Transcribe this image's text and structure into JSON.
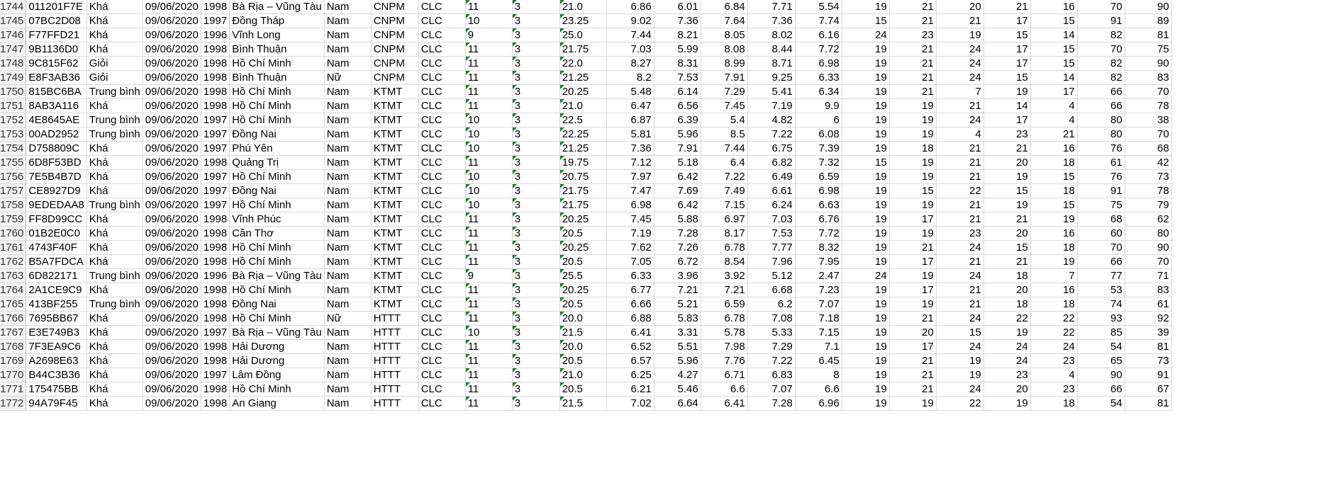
{
  "sheet": {
    "rows": [
      {
        "n": "1744",
        "c": [
          "011201F7​E",
          "Khá",
          "09/06/2020",
          "1998",
          "Bà Rịa – Vũng Tàu",
          "Nam",
          "CNPM",
          "CLC",
          "11",
          "3",
          "21.0",
          "6.86",
          "6.01",
          "6.84",
          "7.71",
          "5.54",
          "19",
          "21",
          "20",
          "21",
          "16",
          "70",
          "90"
        ]
      },
      {
        "n": "1745",
        "c": [
          "07BC2D08",
          "Khá",
          "09/06/2020",
          "1997",
          "Đồng Tháp",
          "Nam",
          "CNPM",
          "CLC",
          "10",
          "3",
          "23.25",
          "9.02",
          "7.36",
          "7.64",
          "7.36",
          "7.74",
          "15",
          "21",
          "21",
          "17",
          "15",
          "91",
          "89"
        ]
      },
      {
        "n": "1746",
        "c": [
          "F77FFD21",
          "Khá",
          "09/06/2020",
          "1996",
          "Vĩnh Long",
          "Nam",
          "CNPM",
          "CLC",
          "9",
          "3",
          "25.0",
          "7.44",
          "8.21",
          "8.05",
          "8.02",
          "6.16",
          "24",
          "23",
          "19",
          "15",
          "14",
          "82",
          "81"
        ]
      },
      {
        "n": "1747",
        "c": [
          "9B1136D0",
          "Khá",
          "09/06/2020",
          "1998",
          "Bình Thuận",
          "Nam",
          "CNPM",
          "CLC",
          "11",
          "3",
          "21.75",
          "7.03",
          "5.99",
          "8.08",
          "8.44",
          "7.72",
          "19",
          "21",
          "24",
          "17",
          "15",
          "70",
          "75"
        ]
      },
      {
        "n": "1748",
        "c": [
          "9C815F62",
          "Giỏi",
          "09/06/2020",
          "1998",
          "Hồ Chí Minh",
          "Nam",
          "CNPM",
          "CLC",
          "11",
          "3",
          "22.0",
          "8.27",
          "8.31",
          "8.99",
          "8.71",
          "6.98",
          "19",
          "21",
          "24",
          "17",
          "15",
          "82",
          "90"
        ]
      },
      {
        "n": "1749",
        "c": [
          "E8F3AB36",
          "Giỏi",
          "09/06/2020",
          "1998",
          "Bình Thuận",
          "Nữ",
          "CNPM",
          "CLC",
          "11",
          "3",
          "21.25",
          "8.2",
          "7.53",
          "7.91",
          "9.25",
          "6.33",
          "19",
          "21",
          "24",
          "15",
          "14",
          "82",
          "83"
        ]
      },
      {
        "n": "1750",
        "c": [
          "815BC6BA",
          "Trung bình",
          "09/06/2020",
          "1998",
          "Hồ Chí Minh",
          "Nam",
          "KTMT",
          "CLC",
          "11",
          "3",
          "20.25",
          "5.48",
          "6.14",
          "7.29",
          "5.41",
          "6.34",
          "19",
          "21",
          "7",
          "19",
          "17",
          "66",
          "70"
        ]
      },
      {
        "n": "1751",
        "c": [
          "8AB3A116",
          "Khá",
          "09/06/2020",
          "1998",
          "Hồ Chí Minh",
          "Nam",
          "KTMT",
          "CLC",
          "11",
          "3",
          "21.0",
          "6.47",
          "6.56",
          "7.45",
          "7.19",
          "9.9",
          "19",
          "19",
          "21",
          "14",
          "4",
          "66",
          "78"
        ]
      },
      {
        "n": "1752",
        "c": [
          "4E8645AE",
          "Trung bình",
          "09/06/2020",
          "1997",
          "Hồ Chí Minh",
          "Nam",
          "KTMT",
          "CLC",
          "10",
          "3",
          "22.5",
          "6.87",
          "6.39",
          "5.4",
          "4.82",
          "6",
          "19",
          "19",
          "24",
          "17",
          "4",
          "80",
          "38"
        ]
      },
      {
        "n": "1753",
        "c": [
          "00AD2952",
          "Trung bình",
          "09/06/2020",
          "1997",
          "Đồng Nai",
          "Nam",
          "KTMT",
          "CLC",
          "10",
          "3",
          "22.25",
          "5.81",
          "5.96",
          "8.5",
          "7.22",
          "6.08",
          "19",
          "19",
          "4",
          "23",
          "21",
          "80",
          "70"
        ]
      },
      {
        "n": "1754",
        "c": [
          "D758809C",
          "Khá",
          "09/06/2020",
          "1997",
          "Phú Yên",
          "Nam",
          "KTMT",
          "CLC",
          "10",
          "3",
          "21.25",
          "7.36",
          "7.91",
          "7.44",
          "6.75",
          "7.39",
          "19",
          "18",
          "21",
          "21",
          "16",
          "76",
          "68"
        ]
      },
      {
        "n": "1755",
        "c": [
          "6D8F53BD",
          "Khá",
          "09/06/2020",
          "1998",
          "Quảng Trị",
          "Nam",
          "KTMT",
          "CLC",
          "11",
          "3",
          "19.75",
          "7.12",
          "5.18",
          "6.4",
          "6.82",
          "7.32",
          "15",
          "19",
          "21",
          "20",
          "18",
          "61",
          "42"
        ]
      },
      {
        "n": "1756",
        "c": [
          "7E5B4B7D",
          "Khá",
          "09/06/2020",
          "1997",
          "Hồ Chí Minh",
          "Nam",
          "KTMT",
          "CLC",
          "10",
          "3",
          "20.75",
          "7.97",
          "6.42",
          "7.22",
          "6.49",
          "6.59",
          "19",
          "19",
          "21",
          "19",
          "15",
          "76",
          "73"
        ]
      },
      {
        "n": "1757",
        "c": [
          "CE8927D9",
          "Khá",
          "09/06/2020",
          "1997",
          "Đồng Nai",
          "Nam",
          "KTMT",
          "CLC",
          "10",
          "3",
          "21.75",
          "7.47",
          "7.69",
          "7.49",
          "6.61",
          "6.98",
          "19",
          "15",
          "22",
          "15",
          "18",
          "91",
          "78"
        ]
      },
      {
        "n": "1758",
        "c": [
          "9EDEDAA8",
          "Trung bình",
          "09/06/2020",
          "1997",
          "Hồ Chí Minh",
          "Nam",
          "KTMT",
          "CLC",
          "10",
          "3",
          "21.75",
          "6.98",
          "6.42",
          "7.15",
          "6.24",
          "6.63",
          "19",
          "19",
          "21",
          "19",
          "15",
          "75",
          "79"
        ]
      },
      {
        "n": "1759",
        "c": [
          "FF8D99CC",
          "Khá",
          "09/06/2020",
          "1998",
          "Vĩnh Phúc",
          "Nam",
          "KTMT",
          "CLC",
          "11",
          "3",
          "20.25",
          "7.45",
          "5.88",
          "6.97",
          "7.03",
          "6.76",
          "19",
          "17",
          "21",
          "21",
          "19",
          "68",
          "62"
        ]
      },
      {
        "n": "1760",
        "c": [
          "01B2E0C0",
          "Khá",
          "09/06/2020",
          "1998",
          "Cần Thơ",
          "Nam",
          "KTMT",
          "CLC",
          "11",
          "3",
          "20.5",
          "7.19",
          "7.28",
          "8.17",
          "7.53",
          "7.72",
          "19",
          "19",
          "23",
          "20",
          "16",
          "60",
          "80"
        ]
      },
      {
        "n": "1761",
        "c": [
          "4743F40F",
          "Khá",
          "09/06/2020",
          "1998",
          "Hồ Chí Minh",
          "Nam",
          "KTMT",
          "CLC",
          "11",
          "3",
          "20.25",
          "7.62",
          "7.26",
          "6.78",
          "7.77",
          "8.32",
          "19",
          "21",
          "24",
          "15",
          "18",
          "70",
          "90"
        ]
      },
      {
        "n": "1762",
        "c": [
          "B5A7FDCA",
          "Khá",
          "09/06/2020",
          "1998",
          "Hồ Chí Minh",
          "Nam",
          "KTMT",
          "CLC",
          "11",
          "3",
          "20.5",
          "7.05",
          "6.72",
          "8.54",
          "7.96",
          "7.95",
          "19",
          "17",
          "21",
          "21",
          "19",
          "66",
          "70"
        ]
      },
      {
        "n": "1763",
        "c": [
          "6D822171",
          "Trung bình",
          "09/06/2020",
          "1996",
          "Bà Rịa – Vũng Tàu",
          "Nam",
          "KTMT",
          "CLC",
          "9",
          "3",
          "25.5",
          "6.33",
          "3.96",
          "3.92",
          "5.12",
          "2.47",
          "24",
          "19",
          "24",
          "18",
          "7",
          "77",
          "71"
        ]
      },
      {
        "n": "1764",
        "c": [
          "2A1CE9C9",
          "Khá",
          "09/06/2020",
          "1998",
          "Hồ Chí Minh",
          "Nam",
          "KTMT",
          "CLC",
          "11",
          "3",
          "20.25",
          "6.77",
          "7.21",
          "7.21",
          "6.68",
          "7.23",
          "19",
          "17",
          "21",
          "20",
          "16",
          "53",
          "83"
        ]
      },
      {
        "n": "1765",
        "c": [
          "413BF255",
          "Trung bình",
          "09/06/2020",
          "1998",
          "Đồng Nai",
          "Nam",
          "KTMT",
          "CLC",
          "11",
          "3",
          "20.5",
          "6.66",
          "5.21",
          "6.59",
          "6.2",
          "7.07",
          "19",
          "19",
          "21",
          "18",
          "18",
          "74",
          "61"
        ]
      },
      {
        "n": "1766",
        "c": [
          "7695BB67",
          "Khá",
          "09/06/2020",
          "1998",
          "Hồ Chí Minh",
          "Nữ",
          "HTTT",
          "CLC",
          "11",
          "3",
          "20.0",
          "6.88",
          "5.83",
          "6.78",
          "7.08",
          "7.18",
          "19",
          "21",
          "24",
          "22",
          "22",
          "93",
          "92"
        ]
      },
      {
        "n": "1767",
        "c": [
          "E3E749B3",
          "Khá",
          "09/06/2020",
          "1997",
          "Bà Rịa – Vũng Tàu",
          "Nam",
          "HTTT",
          "CLC",
          "10",
          "3",
          "21.5",
          "6.41",
          "3.31",
          "5.78",
          "5.33",
          "7.15",
          "19",
          "20",
          "15",
          "19",
          "22",
          "85",
          "39"
        ]
      },
      {
        "n": "1768",
        "c": [
          "7F3EA9C6",
          "Khá",
          "09/06/2020",
          "1998",
          "Hải Dương",
          "Nam",
          "HTTT",
          "CLC",
          "11",
          "3",
          "20.0",
          "6.52",
          "5.51",
          "7.98",
          "7.29",
          "7.1",
          "19",
          "17",
          "24",
          "24",
          "24",
          "54",
          "81"
        ]
      },
      {
        "n": "1769",
        "c": [
          "A2698E63",
          "Khá",
          "09/06/2020",
          "1998",
          "Hải Dương",
          "Nam",
          "HTTT",
          "CLC",
          "11",
          "3",
          "20.5",
          "6.57",
          "5.96",
          "7.76",
          "7.22",
          "6.45",
          "19",
          "21",
          "19",
          "24",
          "23",
          "65",
          "73"
        ]
      },
      {
        "n": "1770",
        "c": [
          "B44C3B36",
          "Khá",
          "09/06/2020",
          "1997",
          "Lâm Đồng",
          "Nam",
          "HTTT",
          "CLC",
          "11",
          "3",
          "21.0",
          "6.25",
          "4.27",
          "6.71",
          "6.83",
          "8",
          "19",
          "21",
          "19",
          "23",
          "4",
          "90",
          "91"
        ]
      },
      {
        "n": "1771",
        "c": [
          "175475BB",
          "Khá",
          "09/06/2020",
          "1998",
          "Hồ Chí Minh",
          "Nam",
          "HTTT",
          "CLC",
          "11",
          "3",
          "20.5",
          "6.21",
          "5.46",
          "6.6",
          "7.07",
          "6.6",
          "19",
          "21",
          "24",
          "20",
          "23",
          "66",
          "67"
        ]
      },
      {
        "n": "1772",
        "c": [
          "94A79F45",
          "Khá",
          "09/06/2020",
          "1998",
          "An Giang",
          "Nam",
          "HTTT",
          "CLC",
          "11",
          "3",
          "21.5",
          "7.02",
          "6.64",
          "6.41",
          "7.28",
          "6.96",
          "19",
          "19",
          "22",
          "19",
          "18",
          "54",
          "81"
        ]
      }
    ]
  }
}
